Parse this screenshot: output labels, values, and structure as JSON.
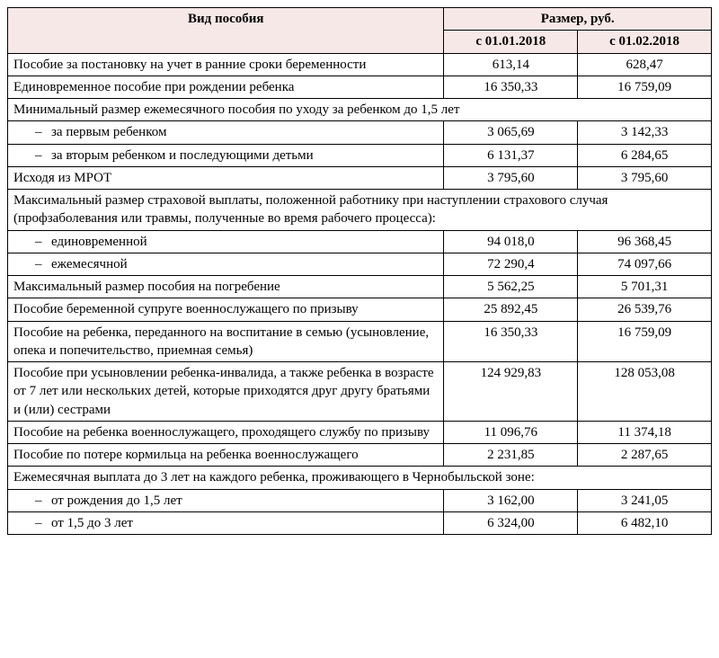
{
  "header": {
    "benefit_type": "Вид пособия",
    "amount": "Размер, руб.",
    "from_jan": "с 01.01.2018",
    "from_feb": "с 01.02.2018"
  },
  "rows": [
    {
      "label": "Пособие за постановку на учет в ранние сроки беременности",
      "jan": "613,14",
      "feb": "628,47"
    },
    {
      "label": "Единовременное пособие при рождении ребенка",
      "jan": "16 350,33",
      "feb": "16 759,09"
    },
    {
      "span": "Минимальный размер ежемесячного пособия по уходу за ребенком до 1,5 лет"
    },
    {
      "label": "за первым ребенком",
      "jan": "3 065,69",
      "feb": "3 142,33",
      "indent": true
    },
    {
      "label": "за вторым ребенком и последующими детьми",
      "jan": "6 131,37",
      "feb": "6 284,65",
      "indent": true
    },
    {
      "label": "Исходя из МРОТ",
      "jan": "3 795,60",
      "feb": "3 795,60"
    },
    {
      "span": "Максимальный размер страховой выплаты, положенной работнику при наступлении страхового случая (профзаболевания или травмы, полученные во время рабочего процесса):"
    },
    {
      "label": "единовременной",
      "jan": "94 018,0",
      "feb": "96 368,45",
      "indent": true
    },
    {
      "label": "ежемесячной",
      "jan": "72 290,4",
      "feb": "74 097,66",
      "indent": true
    },
    {
      "label": "Максимальный размер пособия на погребение",
      "jan": "5 562,25",
      "feb": "5 701,31"
    },
    {
      "label": "Пособие беременной супруге военнослужащего по призыву",
      "jan": "25 892,45",
      "feb": "26 539,76"
    },
    {
      "label": "Пособие на ребенка, переданного на воспитание в семью (усыновление, опека и попечительство, приемная семья)",
      "jan": "16 350,33",
      "feb": "16 759,09"
    },
    {
      "label": "Пособие при усыновлении ребенка-инвалида, а также ребенка в возрасте от 7 лет или нескольких детей, которые приходятся друг другу братьями и (или) сестрами",
      "jan": "124 929,83",
      "feb": "128 053,08"
    },
    {
      "label": "Пособие на ребенка военнослужащего, проходящего службу по призыву",
      "jan": "11 096,76",
      "feb": "11 374,18"
    },
    {
      "label": "Пособие по потере кормильца на ребенка военнослужащего",
      "jan": "2 231,85",
      "feb": "2 287,65"
    },
    {
      "span": "Ежемесячная выплата до 3 лет на каждого ребенка, проживающего в Чернобыльской зоне:"
    },
    {
      "label": "от рождения до 1,5 лет",
      "jan": "3 162,00",
      "feb": "3 241,05",
      "indent": true
    },
    {
      "label": "от 1,5 до 3 лет",
      "jan": "6 324,00",
      "feb": "6 482,10",
      "indent": true
    }
  ],
  "style": {
    "header_bg": "#f6e8e6",
    "border_color": "#000000",
    "font_family": "Times New Roman",
    "font_size_pt": 12
  }
}
